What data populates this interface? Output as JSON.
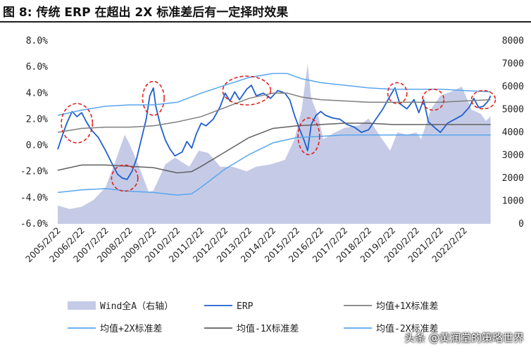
{
  "title": "图 8: 传统 ERP 在超出 2X 标准差后有一定择时效果",
  "watermark": "头条 @黄润堂的策略世界",
  "colors": {
    "area": "#c5cbe6",
    "erp": "#1f5fcf",
    "mean": "#8a8a8a",
    "plus1": "#7f7f7f",
    "plus2": "#58a6ef",
    "minus1": "#606060",
    "minus2": "#58a6ef",
    "circle": "#e02020"
  },
  "chart_data": {
    "type": "line",
    "x_ticks": [
      "2005/2/22",
      "2006/2/22",
      "2007/2/22",
      "2008/2/22",
      "2009/2/22",
      "2010/2/22",
      "2011/2/22",
      "2012/2/22",
      "2013/2/22",
      "2014/2/22",
      "2015/2/22",
      "2016/2/22",
      "2017/2/22",
      "2018/2/22",
      "2019/2/22",
      "2020/2/22",
      "2021/2/22",
      "2022/2/22"
    ],
    "y_left": {
      "ticks": [
        "8.0%",
        "6.0%",
        "4.0%",
        "2.0%",
        "0.0%",
        "-2.0%",
        "-4.0%",
        "-6.0%"
      ],
      "range": [
        -6,
        8
      ]
    },
    "y_right": {
      "ticks": [
        "8000",
        "7000",
        "6000",
        "5000",
        "4000",
        "3000",
        "2000",
        "1000",
        "0"
      ],
      "range": [
        0,
        8000
      ]
    },
    "x_range": [
      2005.0,
      2023.2
    ],
    "series": [
      {
        "name": "Wind全A（右轴）",
        "axis": "right",
        "kind": "area",
        "points": [
          [
            2005.0,
            800
          ],
          [
            2005.5,
            650
          ],
          [
            2006.0,
            750
          ],
          [
            2006.5,
            1050
          ],
          [
            2007.0,
            1600
          ],
          [
            2007.4,
            2700
          ],
          [
            2007.8,
            3900
          ],
          [
            2008.0,
            3500
          ],
          [
            2008.4,
            2500
          ],
          [
            2008.8,
            1400
          ],
          [
            2009.0,
            1450
          ],
          [
            2009.5,
            2600
          ],
          [
            2009.9,
            2900
          ],
          [
            2010.5,
            2500
          ],
          [
            2010.9,
            3200
          ],
          [
            2011.3,
            3100
          ],
          [
            2011.8,
            2500
          ],
          [
            2012.3,
            2500
          ],
          [
            2012.9,
            2300
          ],
          [
            2013.3,
            2500
          ],
          [
            2013.9,
            2600
          ],
          [
            2014.5,
            2800
          ],
          [
            2014.9,
            3700
          ],
          [
            2015.2,
            5000
          ],
          [
            2015.45,
            7000
          ],
          [
            2015.6,
            5500
          ],
          [
            2015.9,
            4700
          ],
          [
            2016.1,
            3700
          ],
          [
            2016.6,
            4000
          ],
          [
            2017.0,
            4200
          ],
          [
            2017.6,
            4300
          ],
          [
            2018.0,
            4600
          ],
          [
            2018.5,
            3800
          ],
          [
            2018.9,
            3200
          ],
          [
            2019.2,
            4000
          ],
          [
            2019.6,
            3900
          ],
          [
            2020.0,
            4000
          ],
          [
            2020.2,
            3700
          ],
          [
            2020.6,
            5000
          ],
          [
            2021.0,
            5600
          ],
          [
            2021.5,
            5800
          ],
          [
            2021.9,
            6000
          ],
          [
            2022.3,
            5000
          ],
          [
            2022.7,
            4800
          ],
          [
            2022.9,
            4500
          ],
          [
            2023.1,
            4700
          ]
        ]
      },
      {
        "name": "ERP",
        "axis": "left",
        "kind": "line",
        "points": [
          [
            2005.0,
            -0.3
          ],
          [
            2005.2,
            0.8
          ],
          [
            2005.4,
            1.8
          ],
          [
            2005.6,
            2.6
          ],
          [
            2005.8,
            2.2
          ],
          [
            2006.0,
            2.5
          ],
          [
            2006.2,
            1.8
          ],
          [
            2006.4,
            1.2
          ],
          [
            2006.7,
            0.6
          ],
          [
            2007.0,
            -0.4
          ],
          [
            2007.3,
            -1.5
          ],
          [
            2007.5,
            -2.2
          ],
          [
            2007.7,
            -2.5
          ],
          [
            2007.9,
            -2.6
          ],
          [
            2008.1,
            -2.0
          ],
          [
            2008.3,
            -1.0
          ],
          [
            2008.5,
            0.5
          ],
          [
            2008.7,
            2.0
          ],
          [
            2008.85,
            3.8
          ],
          [
            2009.0,
            4.4
          ],
          [
            2009.1,
            3.0
          ],
          [
            2009.3,
            1.5
          ],
          [
            2009.5,
            0.4
          ],
          [
            2009.7,
            -0.3
          ],
          [
            2009.9,
            -0.8
          ],
          [
            2010.2,
            -0.5
          ],
          [
            2010.4,
            0.3
          ],
          [
            2010.6,
            -0.2
          ],
          [
            2010.8,
            0.9
          ],
          [
            2011.0,
            1.7
          ],
          [
            2011.2,
            1.5
          ],
          [
            2011.5,
            2.0
          ],
          [
            2011.8,
            3.0
          ],
          [
            2012.0,
            4.0
          ],
          [
            2012.2,
            3.4
          ],
          [
            2012.4,
            4.1
          ],
          [
            2012.6,
            3.5
          ],
          [
            2012.9,
            4.3
          ],
          [
            2013.1,
            4.6
          ],
          [
            2013.3,
            3.8
          ],
          [
            2013.6,
            4.0
          ],
          [
            2013.9,
            3.6
          ],
          [
            2014.2,
            4.2
          ],
          [
            2014.5,
            4.0
          ],
          [
            2014.7,
            3.5
          ],
          [
            2014.9,
            2.3
          ],
          [
            2015.1,
            1.3
          ],
          [
            2015.3,
            0.4
          ],
          [
            2015.45,
            -0.4
          ],
          [
            2015.6,
            1.6
          ],
          [
            2015.8,
            2.3
          ],
          [
            2016.0,
            2.6
          ],
          [
            2016.2,
            2.3
          ],
          [
            2016.5,
            2.1
          ],
          [
            2016.8,
            2.0
          ],
          [
            2017.1,
            1.6
          ],
          [
            2017.4,
            1.4
          ],
          [
            2017.7,
            1.0
          ],
          [
            2018.0,
            1.2
          ],
          [
            2018.3,
            2.0
          ],
          [
            2018.6,
            2.8
          ],
          [
            2018.9,
            3.8
          ],
          [
            2019.1,
            4.4
          ],
          [
            2019.3,
            3.2
          ],
          [
            2019.6,
            2.8
          ],
          [
            2019.9,
            3.5
          ],
          [
            2020.1,
            2.5
          ],
          [
            2020.3,
            3.5
          ],
          [
            2020.5,
            1.8
          ],
          [
            2020.8,
            1.3
          ],
          [
            2021.0,
            1.0
          ],
          [
            2021.3,
            1.7
          ],
          [
            2021.6,
            2.0
          ],
          [
            2021.9,
            2.3
          ],
          [
            2022.2,
            2.9
          ],
          [
            2022.4,
            3.6
          ],
          [
            2022.6,
            2.9
          ],
          [
            2022.8,
            3.0
          ],
          [
            2023.0,
            3.4
          ],
          [
            2023.1,
            3.8
          ]
        ]
      },
      {
        "name": "均值+1X标准差",
        "axis": "left",
        "kind": "line",
        "points": [
          [
            2005.0,
            1.0
          ],
          [
            2006.0,
            1.3
          ],
          [
            2007.0,
            1.4
          ],
          [
            2008.0,
            1.4
          ],
          [
            2009.0,
            1.5
          ],
          [
            2010.0,
            1.8
          ],
          [
            2011.0,
            2.2
          ],
          [
            2012.0,
            2.9
          ],
          [
            2013.0,
            3.6
          ],
          [
            2014.0,
            4.0
          ],
          [
            2014.6,
            4.0
          ],
          [
            2015.2,
            3.7
          ],
          [
            2016.0,
            3.5
          ],
          [
            2017.0,
            3.4
          ],
          [
            2018.0,
            3.3
          ],
          [
            2019.0,
            3.3
          ],
          [
            2020.0,
            3.3
          ],
          [
            2021.0,
            3.3
          ],
          [
            2022.0,
            3.4
          ],
          [
            2023.1,
            3.5
          ]
        ]
      },
      {
        "name": "均值+2X标准差",
        "axis": "left",
        "kind": "line",
        "points": [
          [
            2005.0,
            2.3
          ],
          [
            2006.0,
            2.7
          ],
          [
            2007.0,
            3.0
          ],
          [
            2008.0,
            3.1
          ],
          [
            2009.0,
            3.1
          ],
          [
            2010.0,
            3.3
          ],
          [
            2011.0,
            4.0
          ],
          [
            2012.0,
            4.6
          ],
          [
            2013.0,
            5.2
          ],
          [
            2014.0,
            5.5
          ],
          [
            2014.6,
            5.5
          ],
          [
            2015.2,
            5.1
          ],
          [
            2016.0,
            4.8
          ],
          [
            2017.0,
            4.6
          ],
          [
            2018.0,
            4.4
          ],
          [
            2019.0,
            4.3
          ],
          [
            2020.0,
            4.3
          ],
          [
            2021.0,
            4.3
          ],
          [
            2022.0,
            4.2
          ],
          [
            2023.1,
            4.1
          ]
        ]
      },
      {
        "name": "均值-1X标准差",
        "axis": "left",
        "kind": "line",
        "points": [
          [
            2005.0,
            -1.9
          ],
          [
            2006.0,
            -1.5
          ],
          [
            2007.0,
            -1.5
          ],
          [
            2008.0,
            -1.6
          ],
          [
            2009.0,
            -1.7
          ],
          [
            2010.0,
            -2.1
          ],
          [
            2010.6,
            -2.0
          ],
          [
            2011.0,
            -1.6
          ],
          [
            2012.0,
            -0.5
          ],
          [
            2013.0,
            0.6
          ],
          [
            2014.0,
            1.3
          ],
          [
            2015.0,
            1.5
          ],
          [
            2016.0,
            1.6
          ],
          [
            2017.0,
            1.7
          ],
          [
            2018.0,
            1.7
          ],
          [
            2019.0,
            1.6
          ],
          [
            2020.0,
            1.6
          ],
          [
            2021.0,
            1.6
          ],
          [
            2022.0,
            1.6
          ],
          [
            2023.1,
            1.6
          ]
        ]
      },
      {
        "name": "均值-2X标准差",
        "axis": "left",
        "kind": "line",
        "points": [
          [
            2005.0,
            -3.6
          ],
          [
            2006.0,
            -3.4
          ],
          [
            2007.0,
            -3.3
          ],
          [
            2008.0,
            -3.5
          ],
          [
            2009.0,
            -3.6
          ],
          [
            2010.0,
            -3.8
          ],
          [
            2010.6,
            -3.7
          ],
          [
            2011.0,
            -3.2
          ],
          [
            2012.0,
            -1.8
          ],
          [
            2013.0,
            -0.7
          ],
          [
            2014.0,
            0.2
          ],
          [
            2015.0,
            0.6
          ],
          [
            2016.0,
            0.7
          ],
          [
            2017.0,
            0.8
          ],
          [
            2018.0,
            0.8
          ],
          [
            2019.0,
            0.8
          ],
          [
            2020.0,
            0.8
          ],
          [
            2021.0,
            0.8
          ],
          [
            2022.0,
            0.8
          ],
          [
            2023.1,
            0.8
          ]
        ]
      }
    ],
    "annotations": [
      {
        "shape": "ellipse",
        "x": 2005.8,
        "y": 1.7,
        "rx_years": 0.65,
        "ry_pct": 1.5
      },
      {
        "shape": "ellipse",
        "x": 2007.8,
        "y": -2.5,
        "rx_years": 0.55,
        "ry_pct": 1.0
      },
      {
        "shape": "ellipse",
        "x": 2009.0,
        "y": 3.6,
        "rx_years": 0.45,
        "ry_pct": 1.3
      },
      {
        "shape": "ellipse",
        "x": 2012.9,
        "y": 4.2,
        "rx_years": 1.0,
        "ry_pct": 1.1
      },
      {
        "shape": "ellipse",
        "x": 2015.5,
        "y": 0.7,
        "rx_years": 0.45,
        "ry_pct": 1.4
      },
      {
        "shape": "ellipse",
        "x": 2019.2,
        "y": 4.0,
        "rx_years": 0.4,
        "ry_pct": 0.8
      },
      {
        "shape": "ellipse",
        "x": 2020.7,
        "y": 3.5,
        "rx_years": 0.45,
        "ry_pct": 0.8
      },
      {
        "shape": "ellipse",
        "x": 2022.8,
        "y": 3.5,
        "rx_years": 0.5,
        "ry_pct": 0.7
      }
    ],
    "legend": {
      "placement": "bottom",
      "items": [
        {
          "label": "Wind全A（右轴）",
          "kind": "area",
          "color": "#c5cbe6"
        },
        {
          "label": "ERP",
          "kind": "line",
          "color": "#1f5fcf"
        },
        {
          "label": "均值+1X标准差",
          "kind": "line",
          "color": "#7f7f7f"
        },
        {
          "label": "均值+2X标准差",
          "kind": "line",
          "color": "#58a6ef"
        },
        {
          "label": "均值-1X标准差",
          "kind": "line",
          "color": "#606060"
        },
        {
          "label": "均值-2X标准差",
          "kind": "line",
          "color": "#58a6ef"
        }
      ]
    }
  }
}
